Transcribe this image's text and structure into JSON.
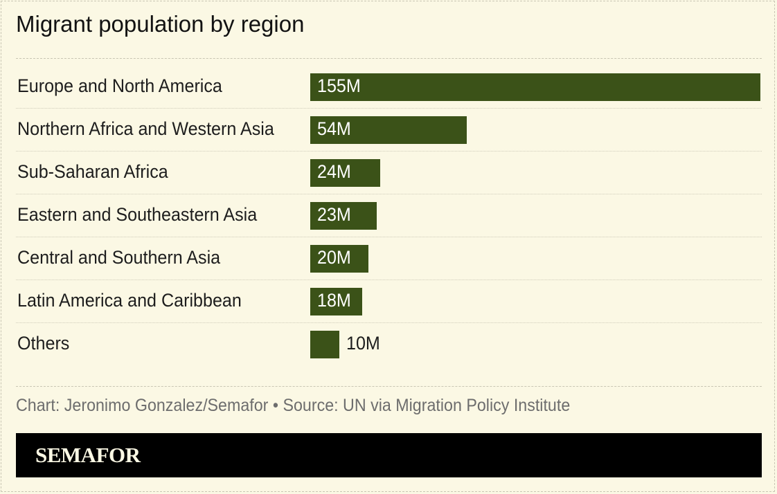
{
  "chart_data": {
    "type": "bar",
    "orientation": "horizontal",
    "title": "Migrant population by region",
    "categories": [
      "Europe and North America",
      "Northern Africa and Western Asia",
      "Sub-Saharan Africa",
      "Eastern and Southeastern Asia",
      "Central and Southern Asia",
      "Latin America and Caribbean",
      "Others"
    ],
    "values": [
      155,
      54,
      24,
      23,
      20,
      18,
      10
    ],
    "value_labels": [
      "155M",
      "54M",
      "24M",
      "23M",
      "20M",
      "18M",
      "10M"
    ],
    "unit": "M",
    "xlim": [
      0,
      155
    ],
    "grid": false,
    "legend": "none",
    "bar_color": "#3b5218"
  },
  "footnote": "Chart: Jeronimo Gonzalez/Semafor • Source: UN via Migration Policy Institute",
  "brand": "SEMAFOR",
  "colors": {
    "background": "#fbf8e4",
    "bar": "#3b5218",
    "brand_bar": "#000000"
  }
}
